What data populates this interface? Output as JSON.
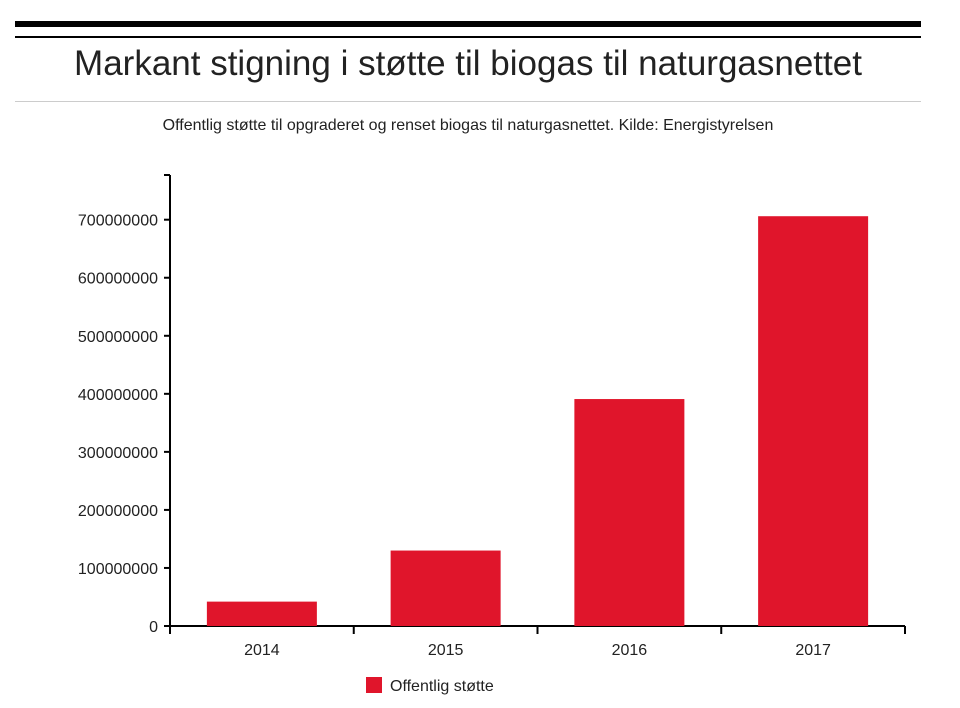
{
  "title": "Markant stigning i støtte til biogas til naturgasnettet",
  "subtitle": "Offentlig støtte til opgraderet og renset biogas til naturgasnettet. Kilde: Energistyrelsen",
  "chart_data": {
    "type": "bar",
    "title": "Markant stigning i støtte til biogas til naturgasnettet",
    "subtitle": "Offentlig støtte til opgraderet og renset biogas til naturgasnettet. Kilde: Energistyrelsen",
    "categories": [
      "2014",
      "2015",
      "2016",
      "2017"
    ],
    "series": [
      {
        "name": "Offentlig støtte",
        "values": [
          42000000,
          130000000,
          391000000,
          706000000
        ],
        "color": "#e0152b"
      }
    ],
    "yticks": [
      "0",
      "100000000",
      "200000000",
      "300000000",
      "400000000",
      "500000000",
      "600000000",
      "700000000"
    ],
    "ylim": [
      0,
      777000000
    ],
    "xlabel": "",
    "ylabel": "",
    "grid": false,
    "legend": "bottom-center"
  }
}
